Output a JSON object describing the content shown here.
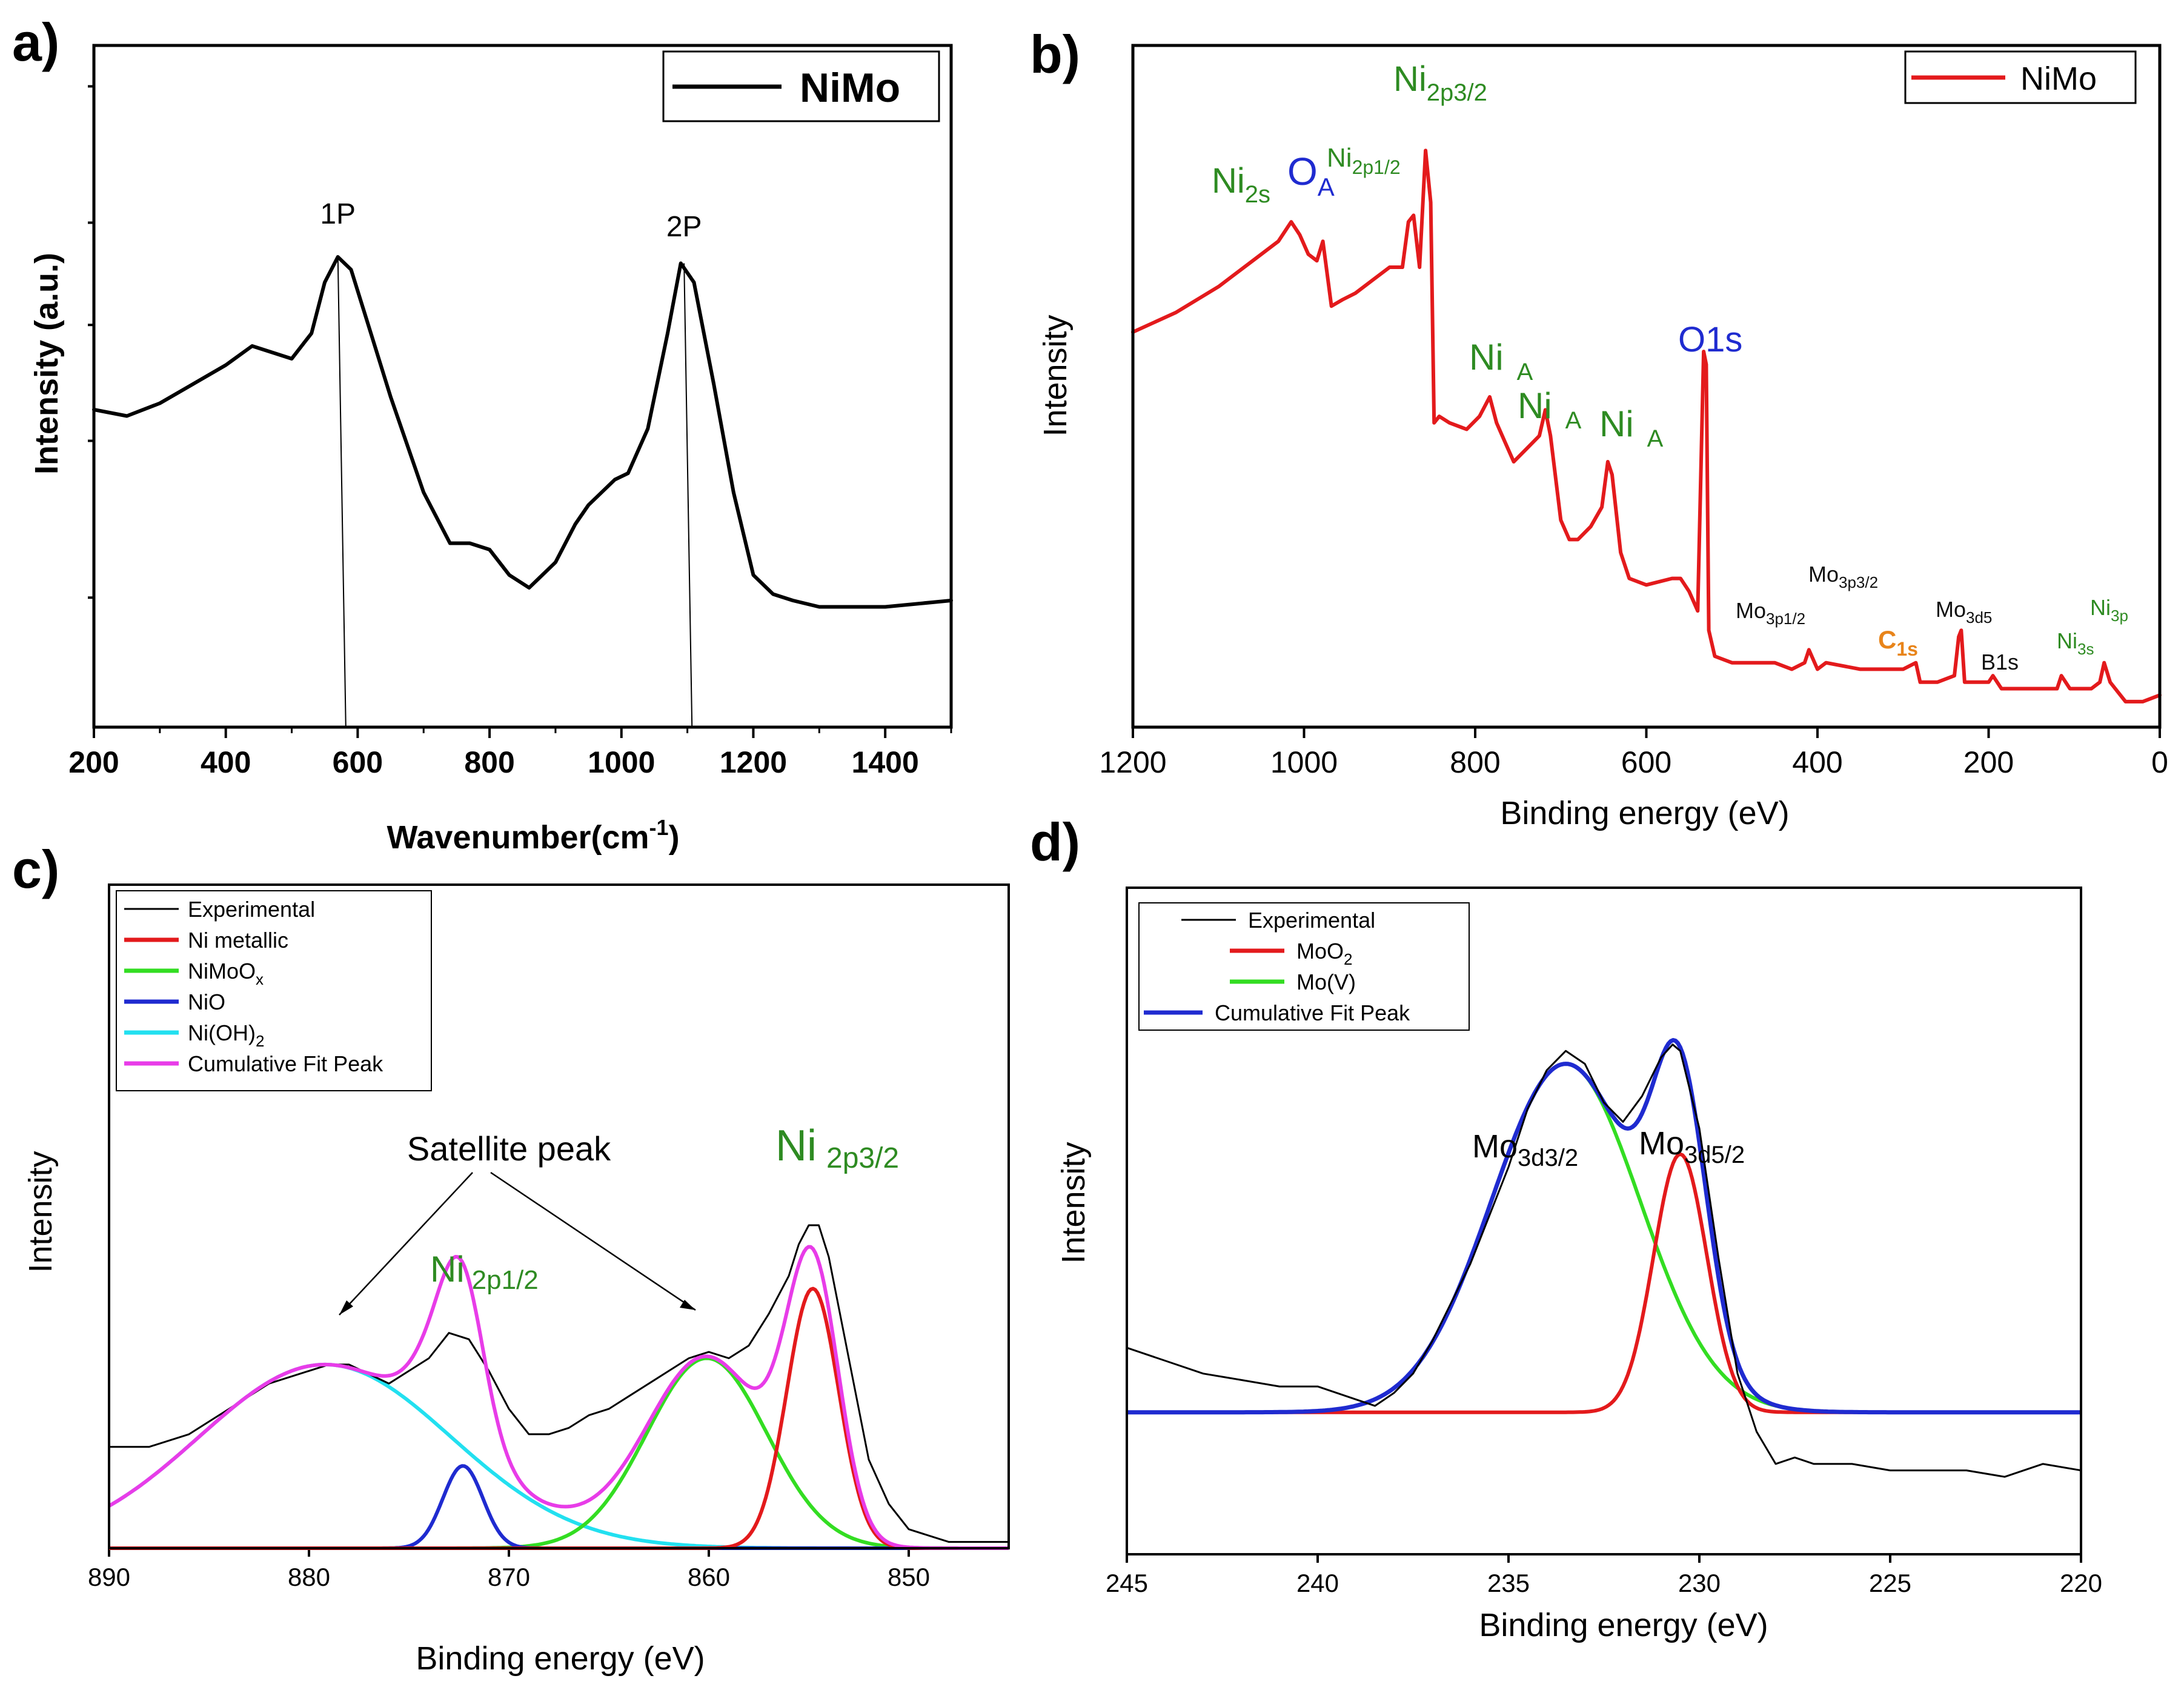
{
  "chart_data": [
    {
      "id": "a",
      "panel_label": "a)",
      "type": "line",
      "xlabel": "Wavenumber(cm",
      "xlabel_sup": "-1",
      "xlabel_close": ")",
      "ylabel": "Intensity (a.u.)",
      "xlim": [
        200,
        1500
      ],
      "ylim": [
        0,
        100
      ],
      "xticks": [
        200,
        400,
        600,
        800,
        1000,
        1200,
        1400
      ],
      "legend": {
        "position": "top-right",
        "entries": [
          {
            "name": "NiMo",
            "color": "#000000"
          }
        ]
      },
      "series": [
        {
          "name": "NiMo",
          "color": "#000000",
          "x": [
            200,
            250,
            300,
            350,
            400,
            440,
            470,
            500,
            530,
            550,
            570,
            590,
            620,
            650,
            700,
            740,
            770,
            800,
            830,
            860,
            900,
            930,
            950,
            970,
            990,
            1010,
            1040,
            1070,
            1090,
            1110,
            1140,
            1170,
            1200,
            1230,
            1260,
            1300,
            1400,
            1500
          ],
          "y": [
            48,
            47,
            49,
            52,
            55,
            58,
            57,
            56,
            60,
            68,
            72,
            70,
            60,
            50,
            35,
            27,
            27,
            26,
            22,
            20,
            24,
            30,
            33,
            35,
            37,
            38,
            45,
            60,
            71,
            68,
            52,
            35,
            22,
            19,
            18,
            17,
            17,
            18
          ]
        }
      ],
      "annotations": [
        {
          "text": "1P",
          "x": 570,
          "y": 78,
          "line_from": [
            570,
            72
          ],
          "line_to": [
            582,
            0
          ]
        },
        {
          "text": "2P",
          "x": 1095,
          "y": 76,
          "line_from": [
            1095,
            71
          ],
          "line_to": [
            1107,
            0
          ]
        }
      ]
    },
    {
      "id": "b",
      "panel_label": "b)",
      "type": "line",
      "xlabel": "Binding energy (eV)",
      "ylabel": "Intensity",
      "xlim": [
        1200,
        0
      ],
      "ylim": [
        0,
        100
      ],
      "xticks": [
        1200,
        1000,
        800,
        600,
        400,
        200,
        0
      ],
      "legend": {
        "position": "top-right",
        "entries": [
          {
            "name": "NiMo",
            "color": "#e31a1c"
          }
        ]
      },
      "series": [
        {
          "name": "NiMo",
          "color": "#e31a1c",
          "x": [
            1200,
            1150,
            1100,
            1060,
            1030,
            1015,
            1005,
            995,
            985,
            978,
            968,
            955,
            940,
            920,
            900,
            885,
            878,
            872,
            865,
            858,
            852,
            848,
            842,
            830,
            810,
            795,
            783,
            775,
            765,
            755,
            740,
            725,
            718,
            712,
            700,
            690,
            680,
            665,
            652,
            645,
            640,
            630,
            620,
            600,
            570,
            560,
            550,
            540,
            533,
            530,
            527,
            520,
            500,
            450,
            430,
            415,
            410,
            400,
            390,
            350,
            300,
            285,
            280,
            260,
            240,
            235,
            232,
            228,
            220,
            200,
            195,
            185,
            150,
            120,
            115,
            105,
            80,
            70,
            65,
            58,
            40,
            20,
            0
          ],
          "y": [
            60,
            63,
            67,
            71,
            74,
            77,
            75,
            72,
            71,
            74,
            64,
            65,
            66,
            68,
            70,
            70,
            77,
            78,
            70,
            88,
            80,
            46,
            47,
            46,
            45,
            47,
            50,
            46,
            43,
            40,
            42,
            44,
            48,
            44,
            31,
            28,
            28,
            30,
            33,
            40,
            38,
            26,
            22,
            21,
            22,
            22,
            20,
            17,
            57,
            55,
            14,
            10,
            9,
            9,
            8,
            9,
            11,
            8,
            9,
            8,
            8,
            9,
            6,
            6,
            7,
            13,
            14,
            6,
            6,
            6,
            7,
            5,
            5,
            5,
            7,
            5,
            5,
            6,
            9,
            6,
            3,
            3,
            4
          ]
        }
      ],
      "annotations": [
        {
          "text": "Ni",
          "sub": "2s",
          "color": "#2e8b22"
        },
        {
          "text": "O",
          "sub": "A",
          "color": "#1f2bd0"
        },
        {
          "text": "Ni",
          "sub": "2p1/2",
          "color": "#2e8b22"
        },
        {
          "text": "Ni",
          "sub": "2p3/2",
          "color": "#2e8b22"
        },
        {
          "text": "Ni",
          "sub": "A",
          "color": "#2e8b22"
        },
        {
          "text": "Ni",
          "sub": "A",
          "color": "#2e8b22"
        },
        {
          "text": "Ni",
          "sub": "A",
          "color": "#2e8b22"
        },
        {
          "text": "O1s",
          "sub": "",
          "color": "#1f2bd0"
        },
        {
          "text": "Mo",
          "sub": "3p1/2",
          "color": "#111111"
        },
        {
          "text": "Mo",
          "sub": "3p3/2",
          "color": "#111111"
        },
        {
          "text": "C",
          "sub": "1s",
          "color": "#e8841a"
        },
        {
          "text": "Mo",
          "sub": "3d5",
          "color": "#111111"
        },
        {
          "text": "B1s",
          "sub": "",
          "color": "#111111"
        },
        {
          "text": "Ni",
          "sub": "3s",
          "color": "#2e8b22"
        },
        {
          "text": "Ni",
          "sub": "3p",
          "color": "#2e8b22"
        }
      ]
    },
    {
      "id": "c",
      "panel_label": "c)",
      "type": "line",
      "xlabel": "Binding energy (eV)",
      "ylabel": "Intensity",
      "xlim": [
        890,
        845
      ],
      "ylim": [
        0,
        100
      ],
      "xticks": [
        890,
        880,
        870,
        860,
        850
      ],
      "legend": {
        "position": "top-left",
        "entries": [
          {
            "name": "Experimental",
            "color": "#000000"
          },
          {
            "name": "Ni metallic",
            "color": "#e31a1c"
          },
          {
            "name": "NiMoO",
            "sub": "x",
            "color": "#33dd22"
          },
          {
            "name": "NiO",
            "color": "#1f2bd0"
          },
          {
            "name": "Ni(OH)",
            "sub": "2",
            "color": "#22e0f0"
          },
          {
            "name": "Cumulative Fit Peak",
            "color": "#e83ce8"
          }
        ]
      },
      "series": [
        {
          "name": "Ni metallic",
          "color": "#e31a1c",
          "peak": {
            "center": 854.8,
            "height": 41,
            "sigma": 1.3
          }
        },
        {
          "name": "NiMoO",
          "color": "#33dd22",
          "peak": {
            "center": 860.1,
            "height": 30,
            "sigma": 3.0
          }
        },
        {
          "name": "NiO",
          "color": "#1f2bd0",
          "peak": {
            "center": 872.3,
            "height": 13,
            "sigma": 1.0
          }
        },
        {
          "name": "Ni(OH)",
          "color": "#22e0f0",
          "peak": {
            "center": 879.2,
            "height": 29,
            "sigma": 6.3
          }
        },
        {
          "name": "Cumulative Fit Peak",
          "color": "#e83ce8",
          "components": [
            "Ni metallic",
            "NiMoO",
            "NiO",
            "Ni(OH)"
          ],
          "extra_peak": {
            "center": 872.8,
            "height": 17,
            "sigma": 1.5
          }
        },
        {
          "name": "Experimental",
          "color": "#000000",
          "x": [
            890,
            888,
            886,
            884,
            882,
            880,
            879,
            878,
            876,
            875,
            874,
            873,
            872,
            871,
            870,
            869,
            868,
            867,
            866,
            865,
            864,
            863,
            862,
            861,
            860,
            859,
            858,
            857,
            856,
            855.5,
            855,
            854.5,
            854,
            853,
            852,
            851,
            850,
            848,
            845
          ],
          "y": [
            16,
            16,
            18,
            22,
            26,
            28,
            29,
            29,
            26,
            28,
            30,
            34,
            33,
            28,
            22,
            18,
            18,
            19,
            21,
            22,
            24,
            26,
            28,
            30,
            31,
            30,
            32,
            37,
            43,
            48,
            51,
            51,
            46,
            30,
            14,
            7,
            3,
            1,
            1
          ]
        }
      ],
      "annotations": [
        {
          "text": "Satellite peak",
          "color": "#111111"
        },
        {
          "text": "Ni",
          "sub": "2p1/2",
          "color": "#2e8b22"
        },
        {
          "text": "Ni",
          "sub": "2p3/2",
          "color": "#2e8b22"
        }
      ]
    },
    {
      "id": "d",
      "panel_label": "d)",
      "type": "line",
      "xlabel": "Binding energy (eV)",
      "ylabel": "Intensity",
      "xlim": [
        245,
        220
      ],
      "ylim": [
        0,
        100
      ],
      "xticks": [
        245,
        240,
        235,
        230,
        225,
        220
      ],
      "legend": {
        "position": "top-left",
        "entries": [
          {
            "name": "Experimental",
            "color": "#000000"
          },
          {
            "name": "MoO",
            "sub": "2",
            "color": "#e31a1c"
          },
          {
            "name": "Mo(V)",
            "color": "#33dd22"
          },
          {
            "name": "Cumulative Fit Peak",
            "color": "#1f2bd0"
          }
        ]
      },
      "series": [
        {
          "name": "MoO",
          "color": "#e31a1c",
          "baseline": 22,
          "peak": {
            "center": 230.5,
            "height": 40,
            "sigma": 0.7
          }
        },
        {
          "name": "Mo(V)",
          "color": "#33dd22",
          "baseline": 22,
          "peak": {
            "center": 233.5,
            "height": 54,
            "sigma": 1.95
          }
        },
        {
          "name": "Cumulative Fit Peak",
          "color": "#1f2bd0",
          "baseline": 22,
          "components": [
            "MoO",
            "Mo(V)"
          ]
        },
        {
          "name": "Experimental",
          "color": "#000000",
          "x": [
            245,
            244,
            243,
            242,
            241,
            240,
            239,
            238.5,
            238,
            237.5,
            237,
            236,
            235,
            234.5,
            234,
            233.5,
            233,
            232.5,
            232,
            231.5,
            231,
            230.7,
            230.5,
            230,
            229.5,
            229,
            228.5,
            228,
            227.5,
            227,
            226,
            225,
            224,
            223,
            222,
            221,
            220
          ],
          "y": [
            32,
            30,
            28,
            27,
            26,
            26,
            24,
            23,
            25,
            28,
            33,
            45,
            60,
            69,
            75,
            78,
            76,
            70,
            67,
            71,
            77,
            79,
            78,
            66,
            46,
            28,
            19,
            14,
            15,
            14,
            14,
            13,
            13,
            13,
            12,
            14,
            13
          ]
        }
      ],
      "annotations": [
        {
          "text": "Mo",
          "sub": "3d3/2",
          "color": "#111111"
        },
        {
          "text": "Mo",
          "sub": "3d5/2",
          "color": "#111111"
        }
      ]
    }
  ]
}
